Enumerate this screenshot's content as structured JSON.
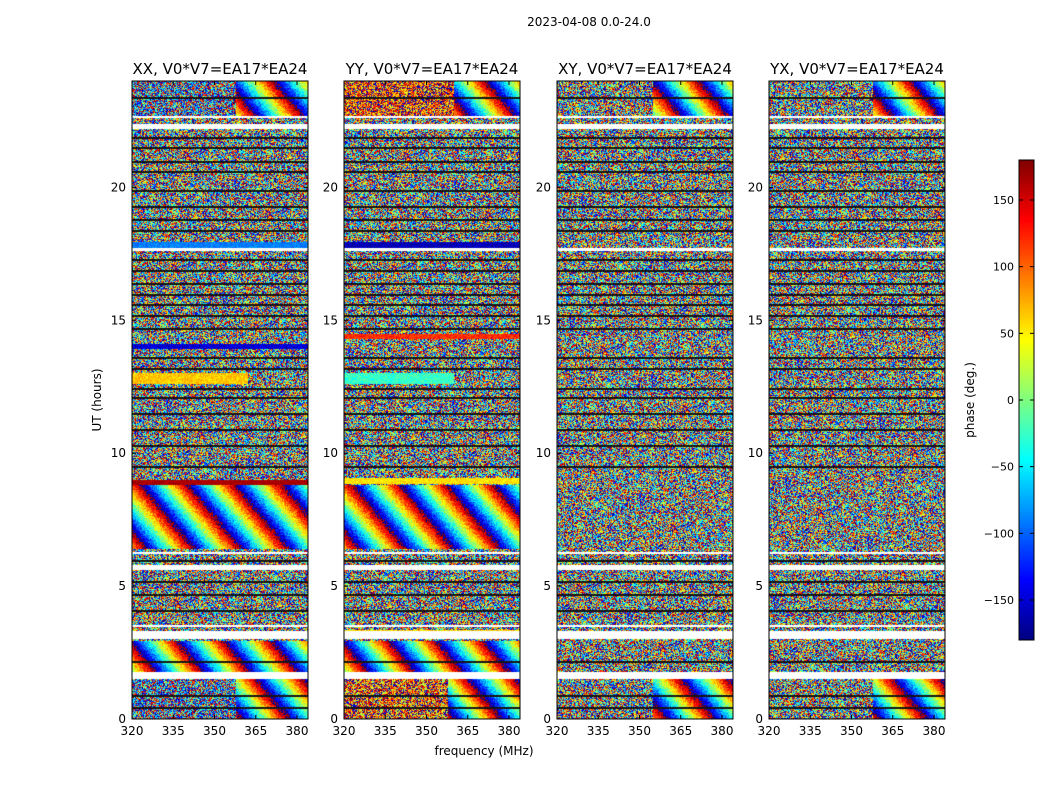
{
  "chart_data": {
    "type": "heatmap",
    "suptitle": "2023-04-08 0.0-24.0",
    "xlabel": "frequency (MHz)",
    "ylabel": "UT (hours)",
    "x_range": [
      320,
      384
    ],
    "xticks": [
      320,
      335,
      350,
      365,
      380
    ],
    "y_range": [
      0,
      24
    ],
    "yticks": [
      0,
      5,
      10,
      15,
      20
    ],
    "colormap": "jet",
    "colorbar": {
      "label": "phase (deg.)",
      "range": [
        -180,
        180
      ],
      "ticks": [
        -150,
        -100,
        -50,
        0,
        50,
        100,
        150
      ],
      "tick_labels": [
        "−150",
        "−100",
        "−50",
        "0",
        "50",
        "100",
        "150"
      ]
    },
    "panels": [
      {
        "title": "XX, V0*V7=EA17*EA24",
        "flagged_bands": [
          [
            1.5,
            1.75
          ],
          [
            3.0,
            3.3
          ],
          [
            3.45,
            3.55
          ],
          [
            5.6,
            5.8
          ],
          [
            6.2,
            6.3
          ],
          [
            17.6,
            17.7
          ],
          [
            22.2,
            22.4
          ],
          [
            22.6,
            22.7
          ]
        ],
        "features": [
          {
            "y": [
              0.0,
              1.5
            ],
            "x": [
              320,
              358
            ],
            "kind": "noise",
            "center": -120,
            "spread": 150
          },
          {
            "y": [
              0.0,
              1.5
            ],
            "x": [
              358,
              384
            ],
            "kind": "fringe",
            "center": 0,
            "spread": 180
          },
          {
            "y": [
              1.75,
              2.95
            ],
            "x": [
              320,
              384
            ],
            "kind": "fringe",
            "center": 0,
            "spread": 180
          },
          {
            "y": [
              6.4,
              8.8
            ],
            "x": [
              320,
              384
            ],
            "kind": "fringe",
            "center": 0,
            "spread": 180
          },
          {
            "y": [
              8.8,
              9.0
            ],
            "x": [
              320,
              384
            ],
            "kind": "solid",
            "center": 165,
            "spread": 10
          },
          {
            "y": [
              12.6,
              13.0
            ],
            "x": [
              320,
              362
            ],
            "kind": "solid",
            "center": 65,
            "spread": 20
          },
          {
            "y": [
              13.9,
              14.1
            ],
            "x": [
              320,
              384
            ],
            "kind": "solid",
            "center": -150,
            "spread": 20
          },
          {
            "y": [
              17.7,
              17.95
            ],
            "x": [
              320,
              384
            ],
            "kind": "solid",
            "center": -90,
            "spread": 15
          },
          {
            "y": [
              22.7,
              24.0
            ],
            "x": [
              320,
              358
            ],
            "kind": "noise",
            "center": -120,
            "spread": 150
          },
          {
            "y": [
              22.7,
              24.0
            ],
            "x": [
              358,
              384
            ],
            "kind": "fringe",
            "center": 0,
            "spread": 180
          }
        ]
      },
      {
        "title": "YY, V0*V7=EA17*EA24",
        "flagged_bands": [
          [
            1.5,
            1.75
          ],
          [
            3.0,
            3.3
          ],
          [
            3.45,
            3.55
          ],
          [
            5.6,
            5.8
          ],
          [
            6.2,
            6.3
          ],
          [
            17.6,
            17.7
          ],
          [
            22.2,
            22.4
          ],
          [
            22.6,
            22.7
          ]
        ],
        "features": [
          {
            "y": [
              0.0,
              1.5
            ],
            "x": [
              320,
              358
            ],
            "kind": "noise",
            "center": 110,
            "spread": 120
          },
          {
            "y": [
              0.0,
              1.5
            ],
            "x": [
              358,
              384
            ],
            "kind": "fringe",
            "center": 0,
            "spread": 180
          },
          {
            "y": [
              1.75,
              2.95
            ],
            "x": [
              320,
              384
            ],
            "kind": "fringe",
            "center": 0,
            "spread": 180
          },
          {
            "y": [
              3.2,
              3.35
            ],
            "x": [
              320,
              384
            ],
            "kind": "solid",
            "center": 60,
            "spread": 20
          },
          {
            "y": [
              6.4,
              8.8
            ],
            "x": [
              320,
              384
            ],
            "kind": "fringe",
            "center": 0,
            "spread": 180
          },
          {
            "y": [
              8.85,
              9.05
            ],
            "x": [
              320,
              384
            ],
            "kind": "solid",
            "center": 55,
            "spread": 15
          },
          {
            "y": [
              12.6,
              13.0
            ],
            "x": [
              320,
              360
            ],
            "kind": "solid",
            "center": -25,
            "spread": 20
          },
          {
            "y": [
              14.3,
              14.5
            ],
            "x": [
              320,
              384
            ],
            "kind": "solid",
            "center": 120,
            "spread": 20
          },
          {
            "y": [
              17.7,
              17.95
            ],
            "x": [
              320,
              384
            ],
            "kind": "solid",
            "center": -160,
            "spread": 15
          },
          {
            "y": [
              22.7,
              24.0
            ],
            "x": [
              320,
              360
            ],
            "kind": "noise",
            "center": 120,
            "spread": 110
          },
          {
            "y": [
              22.7,
              24.0
            ],
            "x": [
              360,
              384
            ],
            "kind": "fringe",
            "center": 0,
            "spread": 180
          }
        ]
      },
      {
        "title": "XY, V0*V7=EA17*EA24",
        "flagged_bands": [
          [
            1.5,
            1.75
          ],
          [
            3.0,
            3.3
          ],
          [
            3.45,
            3.55
          ],
          [
            5.6,
            5.8
          ],
          [
            6.2,
            6.3
          ],
          [
            17.6,
            17.7
          ],
          [
            22.2,
            22.4
          ],
          [
            22.6,
            22.7
          ]
        ],
        "features": [
          {
            "y": [
              0.0,
              1.5
            ],
            "x": [
              355,
              384
            ],
            "kind": "fringe",
            "center": 0,
            "spread": 180
          },
          {
            "y": [
              22.7,
              24.0
            ],
            "x": [
              355,
              384
            ],
            "kind": "fringe",
            "center": 0,
            "spread": 180
          }
        ]
      },
      {
        "title": "YX, V0*V7=EA17*EA24",
        "flagged_bands": [
          [
            1.5,
            1.75
          ],
          [
            3.0,
            3.3
          ],
          [
            3.45,
            3.55
          ],
          [
            5.6,
            5.8
          ],
          [
            6.2,
            6.3
          ],
          [
            17.6,
            17.7
          ],
          [
            22.2,
            22.4
          ],
          [
            22.6,
            22.7
          ]
        ],
        "features": [
          {
            "y": [
              0.0,
              1.5
            ],
            "x": [
              358,
              384
            ],
            "kind": "fringe",
            "center": 0,
            "spread": 180
          },
          {
            "y": [
              22.7,
              24.0
            ],
            "x": [
              358,
              384
            ],
            "kind": "fringe",
            "center": 0,
            "spread": 180
          }
        ]
      }
    ],
    "horizontal_gap_lines_hours": [
      0.45,
      0.9,
      2.2,
      4.1,
      4.7,
      5.2,
      6.0,
      9.5,
      10.3,
      10.9,
      11.5,
      12.1,
      12.45,
      13.2,
      13.6,
      14.7,
      15.2,
      15.6,
      16.0,
      16.4,
      16.9,
      17.3,
      18.4,
      18.8,
      19.3,
      19.9,
      20.6,
      21.0,
      21.5,
      21.9,
      23.4
    ]
  }
}
